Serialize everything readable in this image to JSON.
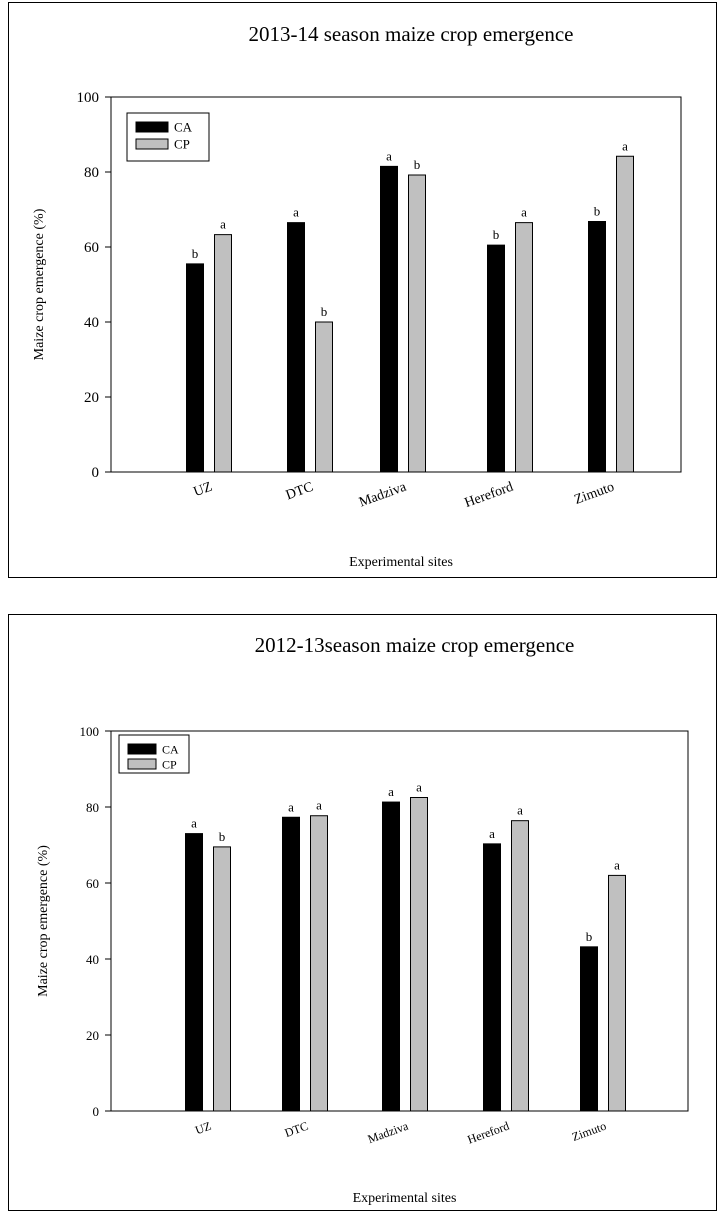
{
  "chart_data": [
    {
      "type": "bar",
      "title": "2013-14 season maize crop emergence",
      "xlabel": "Experimental sites",
      "ylabel": "Maize crop emergence (%)",
      "ylim": [
        0,
        100
      ],
      "yticks": [
        "0",
        "20",
        "40",
        "60",
        "80",
        "100"
      ],
      "categories": [
        "UZ",
        "DTC",
        "Madziva",
        "Hereford",
        "Zimuto"
      ],
      "series": [
        {
          "name": "CA",
          "color": "#000000",
          "values": [
            55.5,
            66.5,
            81.5,
            60.5,
            66.8
          ],
          "letters": [
            "b",
            "a",
            "a",
            "b",
            "b"
          ]
        },
        {
          "name": "CP",
          "color": "#c0c0c0",
          "values": [
            63.3,
            40.0,
            79.2,
            66.5,
            84.2
          ],
          "letters": [
            "a",
            "b",
            "b",
            "a",
            "a"
          ]
        }
      ],
      "legend_position": "top-left",
      "grid": false
    },
    {
      "type": "bar",
      "title": "2012-13season maize crop emergence",
      "xlabel": "Experimental sites",
      "ylabel": "Maize crop emergence (%)",
      "ylim": [
        0,
        100
      ],
      "yticks": [
        "0",
        "20",
        "40",
        "60",
        "80",
        "100"
      ],
      "categories": [
        "UZ",
        "DTC",
        "Madziva",
        "Hereford",
        "Zimuto"
      ],
      "series": [
        {
          "name": "CA",
          "color": "#000000",
          "values": [
            73.0,
            77.3,
            81.3,
            70.3,
            43.2
          ],
          "letters": [
            "a",
            "a",
            "a",
            "a",
            "b"
          ]
        },
        {
          "name": "CP",
          "color": "#c0c0c0",
          "values": [
            69.5,
            77.7,
            82.5,
            76.4,
            62.0
          ],
          "letters": [
            "b",
            "a",
            "a",
            "a",
            "a"
          ]
        }
      ],
      "legend_position": "top-left",
      "grid": false
    }
  ]
}
